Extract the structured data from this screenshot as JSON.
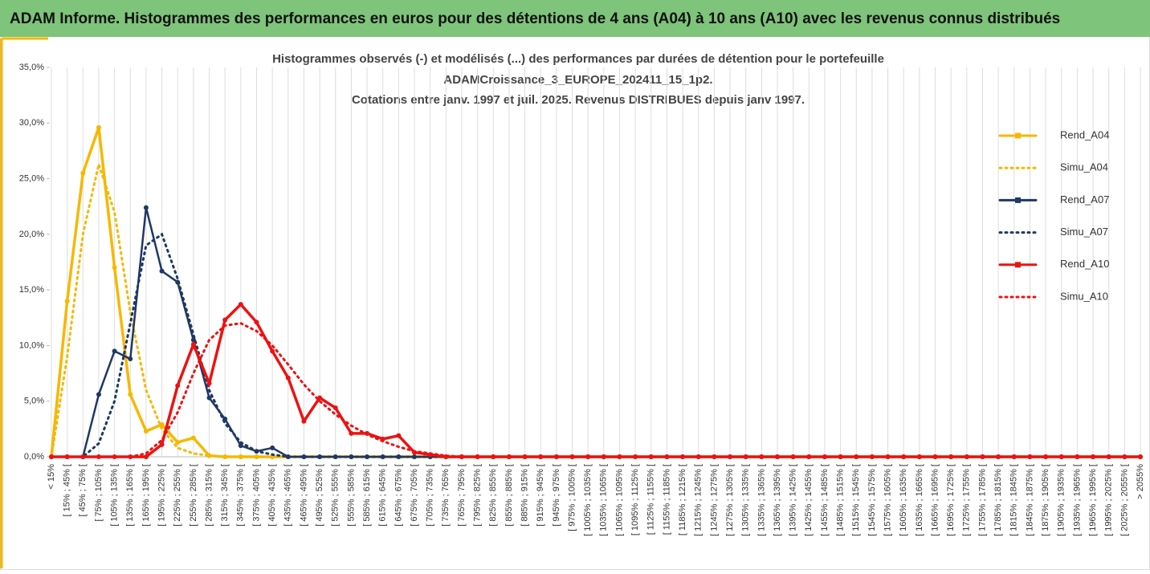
{
  "header": "ADAM Informe. Histogrammes des performances en euros pour des détentions de 4 ans (A04) à 10 ans (A10) avec les revenus connus distribués",
  "chart_data": {
    "type": "line",
    "title": [
      "Histogrammes observés (-) et modélisés (...) des performances par durées de détention pour le portefeuille",
      "ADAMCroissance_3_EUROPE_202411_15_1p2.",
      "Cotations entre janv. 1997 et juil. 2025. Revenus DISTRIBUES depuis janv 1997."
    ],
    "categories": [
      "< 15%",
      "[ 15% ; 45% [",
      "[ 45% ; 75% [",
      "[ 75% ; 105% [",
      "[ 105% ; 135% [",
      "[ 135% ; 165% [",
      "[ 165% ; 195% [",
      "[ 195% ; 225% [",
      "[ 225% ; 255% [",
      "[ 255% ; 285% [",
      "[ 285% ; 315% [",
      "[ 315% ; 345% [",
      "[ 345% ; 375% [",
      "[ 375% ; 405% [",
      "[ 405% ; 435% [",
      "[ 435% ; 465% [",
      "[ 465% ; 495% [",
      "[ 495% ; 525% [",
      "[ 525% ; 555% [",
      "[ 555% ; 585% [",
      "[ 585% ; 615% [",
      "[ 615% ; 645% [",
      "[ 645% ; 675% [",
      "[ 675% ; 705% [",
      "[ 705% ; 735% [",
      "[ 735% ; 765% [",
      "[ 765% ; 795% [",
      "[ 795% ; 825% [",
      "[ 825% ; 855% [",
      "[ 855% ; 885% [",
      "[ 885% ; 915% [",
      "[ 915% ; 945% [",
      "[ 945% ; 975% [",
      "[ 975% ; 1005% [",
      "[ 1005% ; 1035% [",
      "[ 1035% ; 1065% [",
      "[ 1065% ; 1095% [",
      "[ 1095% ; 1125% [",
      "[ 1125% ; 1155% [",
      "[ 1155% ; 1185% [",
      "[ 1185% ; 1215% [",
      "[ 1215% ; 1245% [",
      "[ 1245% ; 1275% [",
      "[ 1275% ; 1305% [",
      "[ 1305% ; 1335% [",
      "[ 1335% ; 1365% [",
      "[ 1365% ; 1395% [",
      "[ 1395% ; 1425% [",
      "[ 1425% ; 1455% [",
      "[ 1455% ; 1485% [",
      "[ 1485% ; 1515% [",
      "[ 1515% ; 1545% [",
      "[ 1545% ; 1575% [",
      "[ 1575% ; 1605% [",
      "[ 1605% ; 1635% [",
      "[ 1635% ; 1665% [",
      "[ 1665% ; 1695% [",
      "[ 1695% ; 1725% [",
      "[ 1725% ; 1755% [",
      "[ 1755% ; 1785% [",
      "[ 1785% ; 1815% [",
      "[ 1815% ; 1845% [",
      "[ 1845% ; 1875% [",
      "[ 1875% ; 1905% [",
      "[ 1905% ; 1935% [",
      "[ 1935% ; 1965% [",
      "[ 1965% ; 1995% [",
      "[ 1995% ; 2025% [",
      "[ 2025% ; 2055% [",
      "> 2055%"
    ],
    "series": [
      {
        "name": "Rend_A04",
        "color": "#f5b800",
        "style": "solid",
        "marker": true,
        "values": [
          0,
          14.0,
          25.5,
          29.6,
          17.0,
          5.6,
          2.3,
          2.9,
          1.3,
          1.7,
          0.1,
          0,
          0,
          0,
          0,
          0,
          0,
          0,
          0,
          0,
          0,
          0,
          0,
          0,
          0,
          0,
          0,
          0,
          0,
          0,
          0,
          0,
          0,
          0,
          0,
          0,
          0,
          0,
          0,
          0,
          0,
          0,
          0,
          0,
          0,
          0,
          0,
          0,
          0,
          0,
          0,
          0,
          0,
          0,
          0,
          0,
          0,
          0,
          0,
          0,
          0,
          0,
          0,
          0,
          0,
          0,
          0,
          0,
          0,
          0
        ]
      },
      {
        "name": "Simu_A04",
        "color": "#f5b800",
        "style": "dotted",
        "marker": false,
        "values": [
          0,
          9,
          20,
          26.3,
          22,
          13,
          6,
          2.5,
          0.8,
          0.3,
          0.1,
          0,
          0,
          0,
          0,
          0,
          0,
          0,
          0,
          0,
          0,
          0,
          0,
          0,
          0,
          0,
          0,
          0,
          0,
          0,
          0,
          0,
          0,
          0,
          0,
          0,
          0,
          0,
          0,
          0,
          0,
          0,
          0,
          0,
          0,
          0,
          0,
          0,
          0,
          0,
          0,
          0,
          0,
          0,
          0,
          0,
          0,
          0,
          0,
          0,
          0,
          0,
          0,
          0,
          0,
          0,
          0,
          0,
          0,
          0
        ]
      },
      {
        "name": "Rend_A07",
        "color": "#1f3864",
        "style": "solid",
        "marker": true,
        "values": [
          0,
          0,
          0,
          5.6,
          9.5,
          8.8,
          22.4,
          16.7,
          15.7,
          10.5,
          5.3,
          3.4,
          1.0,
          0.5,
          0.8,
          0,
          0,
          0,
          0,
          0,
          0,
          0,
          0,
          0,
          0,
          0,
          0,
          0,
          0,
          0,
          0,
          0,
          0,
          0,
          0,
          0,
          0,
          0,
          0,
          0,
          0,
          0,
          0,
          0,
          0,
          0,
          0,
          0,
          0,
          0,
          0,
          0,
          0,
          0,
          0,
          0,
          0,
          0,
          0,
          0,
          0,
          0,
          0,
          0,
          0,
          0,
          0,
          0,
          0,
          0
        ]
      },
      {
        "name": "Simu_A07",
        "color": "#1f3864",
        "style": "dotted",
        "marker": false,
        "values": [
          0,
          0,
          0,
          1.2,
          5,
          12,
          19,
          20,
          16,
          11,
          6,
          3,
          1.3,
          0.5,
          0.2,
          0,
          0,
          0,
          0,
          0,
          0,
          0,
          0,
          0,
          0,
          0,
          0,
          0,
          0,
          0,
          0,
          0,
          0,
          0,
          0,
          0,
          0,
          0,
          0,
          0,
          0,
          0,
          0,
          0,
          0,
          0,
          0,
          0,
          0,
          0,
          0,
          0,
          0,
          0,
          0,
          0,
          0,
          0,
          0,
          0,
          0,
          0,
          0,
          0,
          0,
          0,
          0,
          0,
          0,
          0
        ]
      },
      {
        "name": "Rend_A10",
        "color": "#ee1111",
        "style": "solid",
        "marker": true,
        "values": [
          0,
          0,
          0,
          0,
          0,
          0,
          0,
          1.1,
          6.4,
          10.1,
          6.6,
          12.3,
          13.7,
          12.1,
          9.5,
          7.1,
          3.2,
          5.3,
          4.4,
          2.1,
          2.1,
          1.6,
          1.9,
          0.4,
          0.2,
          0,
          0,
          0,
          0,
          0,
          0,
          0,
          0,
          0,
          0,
          0,
          0,
          0,
          0,
          0,
          0,
          0,
          0,
          0,
          0,
          0,
          0,
          0,
          0,
          0,
          0,
          0,
          0,
          0,
          0,
          0,
          0,
          0,
          0,
          0,
          0,
          0,
          0,
          0,
          0,
          0,
          0,
          0,
          0,
          0
        ]
      },
      {
        "name": "Simu_A10",
        "color": "#ee1111",
        "style": "dotted",
        "marker": false,
        "values": [
          0,
          0,
          0,
          0,
          0,
          0,
          0.3,
          1.5,
          4,
          7.5,
          10.5,
          11.8,
          12,
          11.3,
          10,
          8.3,
          6.5,
          5,
          3.8,
          2.8,
          2,
          1.4,
          0.9,
          0.5,
          0.3,
          0.1,
          0,
          0,
          0,
          0,
          0,
          0,
          0,
          0,
          0,
          0,
          0,
          0,
          0,
          0,
          0,
          0,
          0,
          0,
          0,
          0,
          0,
          0,
          0,
          0,
          0,
          0,
          0,
          0,
          0,
          0,
          0,
          0,
          0,
          0,
          0,
          0,
          0,
          0,
          0,
          0,
          0,
          0,
          0,
          0
        ]
      }
    ],
    "ylim": [
      0,
      35
    ],
    "yticks": [
      {
        "value": 0,
        "label": "0,0%"
      },
      {
        "value": 5,
        "label": "5,0%"
      },
      {
        "value": 10,
        "label": "10,0%"
      },
      {
        "value": 15,
        "label": "15,0%"
      },
      {
        "value": 20,
        "label": "20,0%"
      },
      {
        "value": 25,
        "label": "25,0%"
      },
      {
        "value": 30,
        "label": "30,0%"
      },
      {
        "value": 35,
        "label": "35,0%"
      }
    ],
    "grid": "x",
    "legend": "right"
  }
}
